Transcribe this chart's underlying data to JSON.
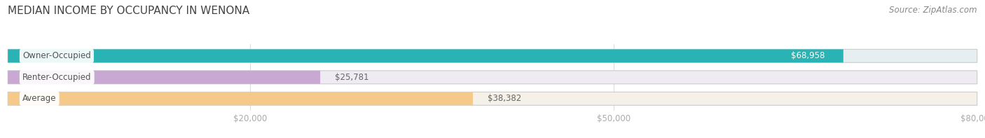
{
  "title": "MEDIAN INCOME BY OCCUPANCY IN WENONA",
  "source": "Source: ZipAtlas.com",
  "categories": [
    "Owner-Occupied",
    "Renter-Occupied",
    "Average"
  ],
  "values": [
    68958,
    25781,
    38382
  ],
  "labels": [
    "$68,958",
    "$25,781",
    "$38,382"
  ],
  "label_inside": [
    true,
    false,
    false
  ],
  "bar_colors": [
    "#29b3b5",
    "#c9a8d4",
    "#f5c98a"
  ],
  "bar_bg_colors": [
    "#e5eef0",
    "#eeebf2",
    "#f5f0e8"
  ],
  "xlim": [
    0,
    80000
  ],
  "xticks": [
    20000,
    50000,
    80000
  ],
  "xticklabels": [
    "$20,000",
    "$50,000",
    "$80,000"
  ],
  "figsize": [
    14.06,
    1.97
  ],
  "dpi": 100,
  "title_fontsize": 11,
  "label_fontsize": 8.5,
  "bar_label_fontsize": 8.5,
  "source_fontsize": 8.5,
  "bar_height": 0.62,
  "title_color": "#444444",
  "source_color": "#888888",
  "tick_color": "#aaaaaa",
  "bar_label_color_inside": "#ffffff",
  "bar_label_color_outside": "#666666",
  "cat_label_color": "#555555",
  "grid_color": "#dddddd",
  "bar_border_color": "#cccccc"
}
